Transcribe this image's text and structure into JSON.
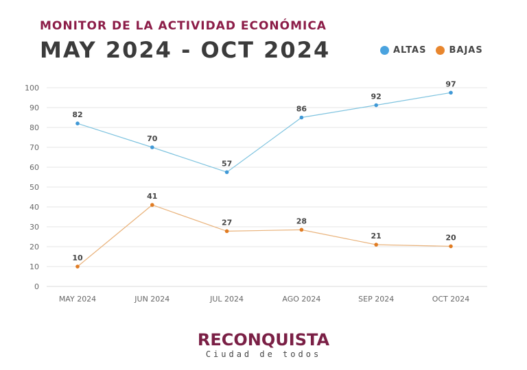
{
  "header": {
    "subtitle": "MONITOR DE LA ACTIVIDAD ECONÓMICA",
    "title": "MAY 2024 - OCT 2024"
  },
  "legend": [
    {
      "label": "ALTAS",
      "color": "#4aa3df"
    },
    {
      "label": "BAJAS",
      "color": "#e8862e"
    }
  ],
  "chart_data": {
    "type": "line",
    "title": "MAY 2024 - OCT 2024",
    "categories": [
      "MAY 2024",
      "JUN 2024",
      "JUL 2024",
      "AGO 2024",
      "SEP 2024",
      "OCT 2024"
    ],
    "series": [
      {
        "name": "ALTAS",
        "color": "#7ec3df",
        "marker_color": "#3f98d6",
        "values": [
          82,
          70,
          57,
          86,
          92,
          97
        ]
      },
      {
        "name": "BAJAS",
        "color": "#e9b27a",
        "marker_color": "#e07b22",
        "values": [
          10,
          41,
          27,
          28,
          21,
          20
        ]
      }
    ],
    "plotted_values": [
      [
        82,
        70,
        57.5,
        85,
        91.2,
        97.5
      ],
      [
        10,
        41,
        27.8,
        28.5,
        21,
        20.2
      ]
    ],
    "ylim": [
      0,
      100
    ],
    "yticks": [
      0,
      10,
      20,
      30,
      40,
      50,
      60,
      70,
      80,
      90,
      100
    ],
    "grid": true,
    "legend_position": "top-right"
  },
  "logo": {
    "brand": "RECONQUISTA",
    "tagline": "Ciudad de todos"
  }
}
